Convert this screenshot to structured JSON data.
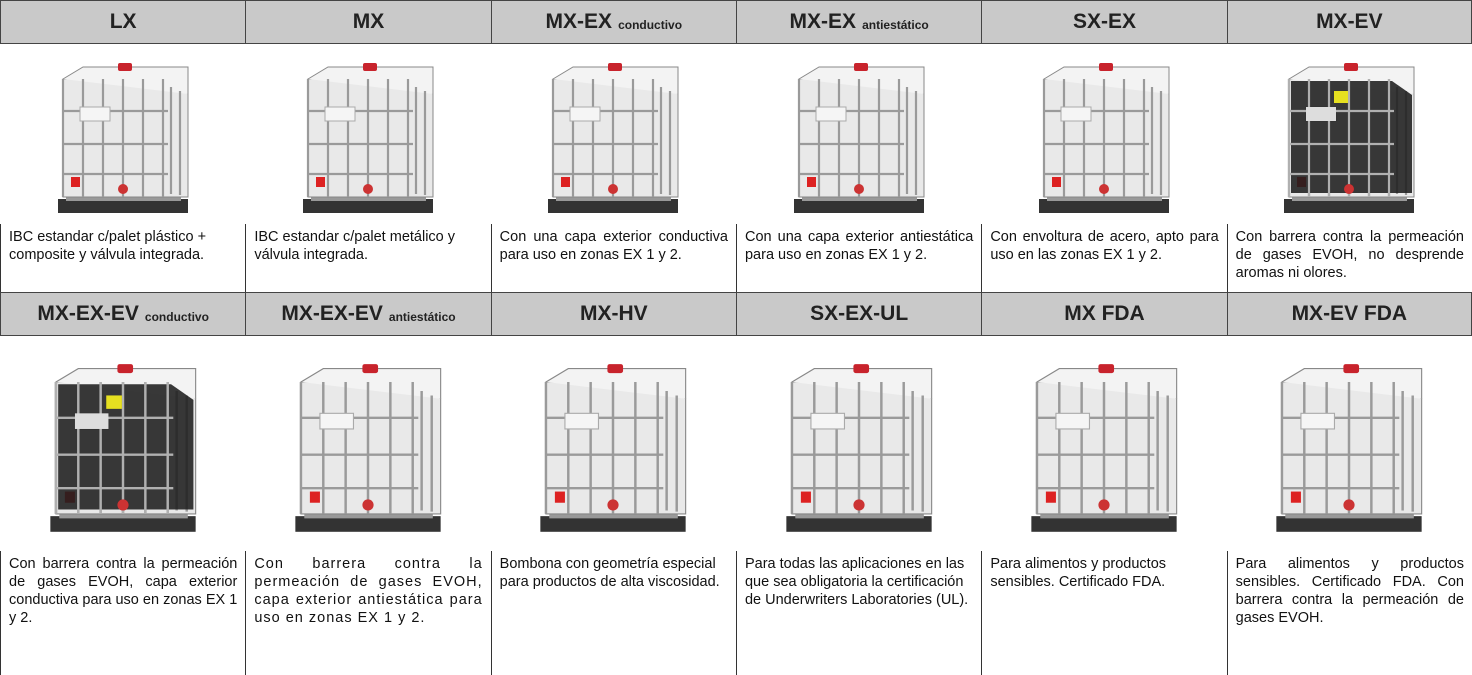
{
  "products": [
    {
      "name": "LX",
      "description": "IBC estandar c/palet plástico + composite y válvula integrada."
    },
    {
      "name": "MX",
      "description": "IBC estandar c/palet metálico y válvula integrada."
    },
    {
      "name": "MX-EX",
      "suffix": "conductivo",
      "description": "Con una capa exterior conductiva para uso en zonas EX 1 y 2."
    },
    {
      "name": "MX-EX",
      "suffix": "antiestático",
      "description": "Con una capa exterior antiestática para uso en zonas EX 1 y 2."
    },
    {
      "name": "SX-EX",
      "description": "Con envoltura de acero, apto para uso en las zonas EX 1 y 2."
    },
    {
      "name": "MX-EV",
      "description": "Con barrera contra la permeación de gases EVOH, no desprende aromas ni olores."
    },
    {
      "name": "MX-EX-EV",
      "suffix": "conductivo",
      "description": "Con barrera contra la permeación de gases EVOH, capa exterior conductiva para uso en zonas EX 1 y 2."
    },
    {
      "name": "MX-EX-EV",
      "suffix": "antiestático",
      "description": "Con barrera contra la permeación de gases EVOH, capa exterior antiestática para uso en zonas EX 1 y 2."
    },
    {
      "name": "MX-HV",
      "description": "Bombona con geometría especial para productos de alta viscosidad."
    },
    {
      "name": "SX-EX-UL",
      "description": "Para todas las aplicaciones en las que sea obligatoria la certificación de Underwriters Laboratories (UL)."
    },
    {
      "name": "MX FDA",
      "description": "Para alimentos y productos sensibles. Certificado FDA."
    },
    {
      "name": "MX-EV FDA",
      "description": "Para alimentos y productos sensibles. Certificado FDA. Con barrera contra la permeación de gases EVOH."
    }
  ]
}
